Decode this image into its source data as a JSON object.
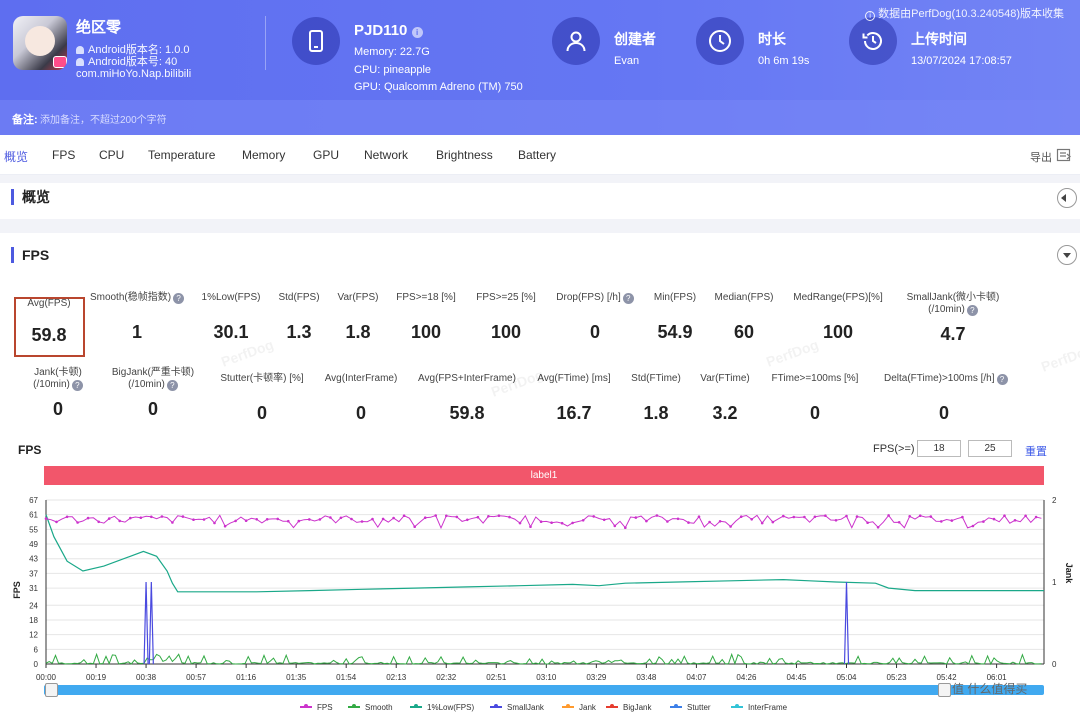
{
  "header": {
    "app": {
      "name": "绝区零",
      "android_version_name": "Android版本名: 1.0.0",
      "android_version_code": "Android版本号: 40",
      "package": "com.miHoYo.Nap.bilibili"
    },
    "device": {
      "name": "PJD110",
      "memory": "Memory: 22.7G",
      "cpu": "CPU: pineapple",
      "gpu": "GPU: Qualcomm Adreno (TM) 750"
    },
    "creator": {
      "label": "创建者",
      "value": "Evan"
    },
    "duration": {
      "label": "时长",
      "value": "0h 6m 19s"
    },
    "upload": {
      "label": "上传时间",
      "value": "13/07/2024 17:08:57"
    },
    "collected_by": "数据由PerfDog(10.3.240548)版本收集",
    "remark_label": "备注:",
    "remark_placeholder": "添加备注，不超过200个字符"
  },
  "tabs": [
    "概览",
    "FPS",
    "CPU",
    "Temperature",
    "Memory",
    "GPU",
    "Network",
    "Brightness",
    "Battery"
  ],
  "export_label": "导出",
  "overview_title": "概览",
  "fps_title": "FPS",
  "stats_row1": [
    {
      "label": "Avg(FPS)",
      "value": "59.8"
    },
    {
      "label": "Smooth(稳帧指数)",
      "value": "1",
      "help": true
    },
    {
      "label": "1%Low(FPS)",
      "value": "30.1"
    },
    {
      "label": "Std(FPS)",
      "value": "1.3"
    },
    {
      "label": "Var(FPS)",
      "value": "1.8"
    },
    {
      "label": "FPS>=18 [%]",
      "value": "100"
    },
    {
      "label": "FPS>=25 [%]",
      "value": "100"
    },
    {
      "label": "Drop(FPS) [/h]",
      "value": "0",
      "help": true
    },
    {
      "label": "Min(FPS)",
      "value": "54.9"
    },
    {
      "label": "Median(FPS)",
      "value": "60"
    },
    {
      "label": "MedRange(FPS)[%]",
      "value": "100"
    },
    {
      "label": "SmallJank(微小卡顿)",
      "label2": "(/10min)",
      "value": "4.7",
      "help": true
    }
  ],
  "stats_row2": [
    {
      "label": "Jank(卡顿)",
      "label2": "(/10min)",
      "value": "0",
      "help": true
    },
    {
      "label": "BigJank(严重卡顿)",
      "label2": "(/10min)",
      "value": "0",
      "help": true
    },
    {
      "label": "Stutter(卡顿率) [%]",
      "value": "0"
    },
    {
      "label": "Avg(InterFrame)",
      "value": "0"
    },
    {
      "label": "Avg(FPS+InterFrame)",
      "value": "59.8"
    },
    {
      "label": "Avg(FTime) [ms]",
      "value": "16.7"
    },
    {
      "label": "Std(FTime)",
      "value": "1.8"
    },
    {
      "label": "Var(FTime)",
      "value": "3.2"
    },
    {
      "label": "FTime>=100ms [%]",
      "value": "0"
    },
    {
      "label": "Delta(FTime)>100ms [/h]",
      "value": "0",
      "help": true
    }
  ],
  "chart_controls": {
    "title": "FPS",
    "fps_ge_label": "FPS(>=)",
    "threshold1": "18",
    "threshold2": "25",
    "reset_label": "重置",
    "label_bar": "label1"
  },
  "watermark": "PerfDog",
  "corner_watermark": "值 什么值得买",
  "chart_data": {
    "type": "line",
    "x_ticks": [
      "00:00",
      "00:19",
      "00:38",
      "00:57",
      "01:16",
      "01:35",
      "01:54",
      "02:13",
      "02:32",
      "02:51",
      "03:10",
      "03:29",
      "03:48",
      "04:07",
      "04:26",
      "04:45",
      "05:04",
      "05:23",
      "05:42",
      "06:01"
    ],
    "y_left": {
      "label": "FPS",
      "ticks": [
        0,
        6,
        12,
        18,
        24,
        31,
        37,
        43,
        49,
        55,
        61,
        67
      ],
      "ylim": [
        0,
        67
      ]
    },
    "y_right": {
      "label": "Jank",
      "ticks": [
        0,
        1,
        2
      ],
      "ylim": [
        0,
        2
      ]
    },
    "duration_seconds": 379,
    "series": [
      {
        "name": "FPS",
        "color": "#cc33cc",
        "summary": {
          "avg": 59.8,
          "min": 54.9,
          "typical_range": [
            56,
            61
          ]
        }
      },
      {
        "name": "Smooth",
        "color": "#33aa44",
        "summary": {
          "typical_range": [
            0,
            4
          ]
        }
      },
      {
        "name": "1%Low(FPS)",
        "color": "#1aa889",
        "points": [
          [
            0,
            61
          ],
          [
            3,
            52
          ],
          [
            8,
            42
          ],
          [
            14,
            38
          ],
          [
            22,
            40
          ],
          [
            32,
            44
          ],
          [
            37,
            46
          ],
          [
            42,
            44
          ],
          [
            46,
            38
          ],
          [
            48,
            33
          ],
          [
            50,
            29.5
          ],
          [
            60,
            29.5
          ],
          [
            80,
            29.5
          ],
          [
            100,
            30
          ],
          [
            120,
            30.5
          ],
          [
            140,
            31
          ],
          [
            160,
            31.5
          ],
          [
            180,
            32
          ],
          [
            200,
            32.5
          ],
          [
            210,
            32
          ],
          [
            220,
            33
          ],
          [
            240,
            33.5
          ],
          [
            260,
            34
          ],
          [
            280,
            34.5
          ],
          [
            290,
            34
          ],
          [
            300,
            33.5
          ],
          [
            315,
            33
          ],
          [
            320,
            31
          ],
          [
            330,
            30
          ],
          [
            350,
            30
          ],
          [
            379,
            30
          ]
        ]
      },
      {
        "name": "SmallJank",
        "color": "#4a4adf",
        "spikes": [
          [
            38,
            1
          ],
          [
            40,
            1
          ],
          [
            304,
            1
          ]
        ]
      },
      {
        "name": "Jank",
        "color": "#ff9a2e",
        "values": []
      },
      {
        "name": "BigJank",
        "color": "#e63c2e",
        "values": []
      },
      {
        "name": "Stutter",
        "color": "#3d7fe8",
        "values": []
      },
      {
        "name": "InterFrame",
        "color": "#33c3d6",
        "values": []
      }
    ]
  }
}
